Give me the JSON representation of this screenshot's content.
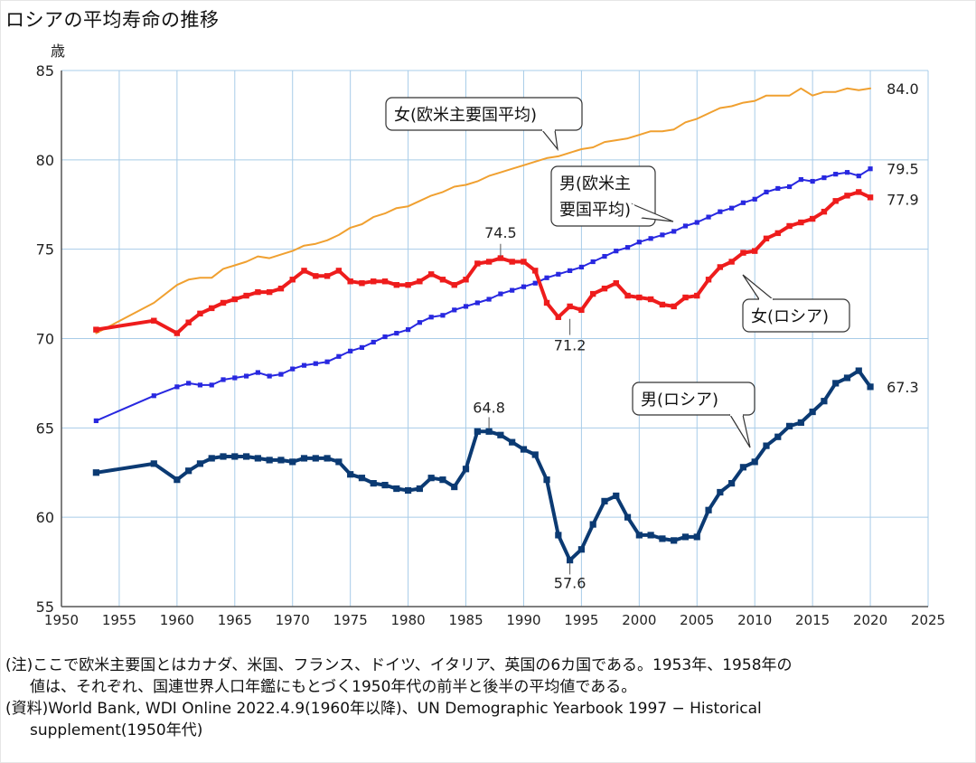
{
  "title": "ロシアの平均寿命の推移",
  "chart_data": {
    "type": "line",
    "ylabel": "歳",
    "xlim": [
      1950,
      2025
    ],
    "ylim": [
      55,
      85
    ],
    "xticks": [
      "1950",
      "1955",
      "1960",
      "1965",
      "1970",
      "1975",
      "1980",
      "1985",
      "1990",
      "1995",
      "2000",
      "2005",
      "2010",
      "2015",
      "2020",
      "2025"
    ],
    "yticks": [
      "55",
      "60",
      "65",
      "70",
      "75",
      "80",
      "85"
    ],
    "grid": true,
    "series": [
      {
        "name": "女(欧米主要国平均)",
        "color": "#f0a030",
        "x": [
          1953,
          1958,
          1960,
          1961,
          1962,
          1963,
          1964,
          1965,
          1966,
          1967,
          1968,
          1969,
          1970,
          1971,
          1972,
          1973,
          1974,
          1975,
          1976,
          1977,
          1978,
          1979,
          1980,
          1981,
          1982,
          1983,
          1984,
          1985,
          1986,
          1987,
          1988,
          1989,
          1990,
          1991,
          1992,
          1993,
          1994,
          1995,
          1996,
          1997,
          1998,
          1999,
          2000,
          2001,
          2002,
          2003,
          2004,
          2005,
          2006,
          2007,
          2008,
          2009,
          2010,
          2011,
          2012,
          2013,
          2014,
          2015,
          2016,
          2017,
          2018,
          2019,
          2020
        ],
        "y": [
          70.3,
          72.0,
          73.0,
          73.3,
          73.4,
          73.4,
          73.9,
          74.1,
          74.3,
          74.6,
          74.5,
          74.7,
          74.9,
          75.2,
          75.3,
          75.5,
          75.8,
          76.2,
          76.4,
          76.8,
          77.0,
          77.3,
          77.4,
          77.7,
          78.0,
          78.2,
          78.5,
          78.6,
          78.8,
          79.1,
          79.3,
          79.5,
          79.7,
          79.9,
          80.1,
          80.2,
          80.4,
          80.6,
          80.7,
          81.0,
          81.1,
          81.2,
          81.4,
          81.6,
          81.6,
          81.7,
          82.1,
          82.3,
          82.6,
          82.9,
          83.0,
          83.2,
          83.3,
          83.6,
          83.6,
          83.6,
          84.0,
          83.6,
          83.8,
          83.8,
          84.0,
          83.9,
          84.0
        ],
        "end_label": "84.0"
      },
      {
        "name": "男(欧米主要国平均)",
        "color": "#2828e0",
        "x": [
          1953,
          1958,
          1960,
          1961,
          1962,
          1963,
          1964,
          1965,
          1966,
          1967,
          1968,
          1969,
          1970,
          1971,
          1972,
          1973,
          1974,
          1975,
          1976,
          1977,
          1978,
          1979,
          1980,
          1981,
          1982,
          1983,
          1984,
          1985,
          1986,
          1987,
          1988,
          1989,
          1990,
          1991,
          1992,
          1993,
          1994,
          1995,
          1996,
          1997,
          1998,
          1999,
          2000,
          2001,
          2002,
          2003,
          2004,
          2005,
          2006,
          2007,
          2008,
          2009,
          2010,
          2011,
          2012,
          2013,
          2014,
          2015,
          2016,
          2017,
          2018,
          2019,
          2020
        ],
        "y": [
          65.4,
          66.8,
          67.3,
          67.5,
          67.4,
          67.4,
          67.7,
          67.8,
          67.9,
          68.1,
          67.9,
          68.0,
          68.3,
          68.5,
          68.6,
          68.7,
          69.0,
          69.3,
          69.5,
          69.8,
          70.1,
          70.3,
          70.5,
          70.9,
          71.2,
          71.3,
          71.6,
          71.8,
          72.0,
          72.2,
          72.5,
          72.7,
          72.9,
          73.1,
          73.4,
          73.6,
          73.8,
          74.0,
          74.3,
          74.6,
          74.9,
          75.1,
          75.4,
          75.6,
          75.8,
          76.0,
          76.3,
          76.5,
          76.8,
          77.1,
          77.3,
          77.6,
          77.8,
          78.2,
          78.4,
          78.5,
          78.9,
          78.8,
          79.0,
          79.2,
          79.3,
          79.1,
          79.5
        ],
        "end_label": "79.5"
      },
      {
        "name": "女(ロシア)",
        "color": "#ee1c1c",
        "x": [
          1953,
          1958,
          1960,
          1961,
          1962,
          1963,
          1964,
          1965,
          1966,
          1967,
          1968,
          1969,
          1970,
          1971,
          1972,
          1973,
          1974,
          1975,
          1976,
          1977,
          1978,
          1979,
          1980,
          1981,
          1982,
          1983,
          1984,
          1985,
          1986,
          1987,
          1988,
          1989,
          1990,
          1991,
          1992,
          1993,
          1994,
          1995,
          1996,
          1997,
          1998,
          1999,
          2000,
          2001,
          2002,
          2003,
          2004,
          2005,
          2006,
          2007,
          2008,
          2009,
          2010,
          2011,
          2012,
          2013,
          2014,
          2015,
          2016,
          2017,
          2018,
          2019,
          2020
        ],
        "y": [
          70.5,
          71.0,
          70.3,
          70.9,
          71.4,
          71.7,
          72.0,
          72.2,
          72.4,
          72.6,
          72.6,
          72.8,
          73.3,
          73.8,
          73.5,
          73.5,
          73.8,
          73.2,
          73.1,
          73.2,
          73.2,
          73.0,
          73.0,
          73.2,
          73.6,
          73.3,
          73.0,
          73.3,
          74.2,
          74.3,
          74.5,
          74.3,
          74.3,
          73.8,
          72.0,
          71.2,
          71.8,
          71.6,
          72.5,
          72.8,
          73.1,
          72.4,
          72.3,
          72.2,
          71.9,
          71.8,
          72.3,
          72.4,
          73.3,
          74.0,
          74.3,
          74.8,
          74.9,
          75.6,
          75.9,
          76.3,
          76.5,
          76.7,
          77.1,
          77.7,
          78.0,
          78.2,
          77.9
        ],
        "point_labels": [
          {
            "x": 1988,
            "y": 74.5,
            "text": "74.5"
          },
          {
            "x": 1994,
            "y": 71.2,
            "text": "71.2"
          }
        ],
        "end_label": "77.9"
      },
      {
        "name": "男(ロシア)",
        "color": "#0b3a73",
        "x": [
          1953,
          1958,
          1960,
          1961,
          1962,
          1963,
          1964,
          1965,
          1966,
          1967,
          1968,
          1969,
          1970,
          1971,
          1972,
          1973,
          1974,
          1975,
          1976,
          1977,
          1978,
          1979,
          1980,
          1981,
          1982,
          1983,
          1984,
          1985,
          1986,
          1987,
          1988,
          1989,
          1990,
          1991,
          1992,
          1993,
          1994,
          1995,
          1996,
          1997,
          1998,
          1999,
          2000,
          2001,
          2002,
          2003,
          2004,
          2005,
          2006,
          2007,
          2008,
          2009,
          2010,
          2011,
          2012,
          2013,
          2014,
          2015,
          2016,
          2017,
          2018,
          2019,
          2020
        ],
        "y": [
          62.5,
          63.0,
          62.1,
          62.6,
          63.0,
          63.3,
          63.4,
          63.4,
          63.4,
          63.3,
          63.2,
          63.2,
          63.1,
          63.3,
          63.3,
          63.3,
          63.1,
          62.4,
          62.2,
          61.9,
          61.8,
          61.6,
          61.5,
          61.6,
          62.2,
          62.1,
          61.7,
          62.7,
          64.8,
          64.8,
          64.6,
          64.2,
          63.8,
          63.5,
          62.1,
          59.0,
          57.6,
          58.2,
          59.6,
          60.9,
          61.2,
          60.0,
          59.0,
          59.0,
          58.8,
          58.7,
          58.9,
          58.9,
          60.4,
          61.4,
          61.9,
          62.8,
          63.1,
          64.0,
          64.5,
          65.1,
          65.3,
          65.9,
          66.5,
          67.5,
          67.8,
          68.2,
          67.3
        ],
        "point_labels": [
          {
            "x": 1987,
            "y": 64.8,
            "text": "64.8"
          },
          {
            "x": 1994,
            "y": 57.6,
            "text": "57.6"
          }
        ],
        "end_label": "67.3"
      }
    ],
    "callouts": [
      {
        "text": "女(欧米主要国平均)",
        "series": 0
      },
      {
        "text": "男(欧米主\n要国平均)",
        "series": 1
      },
      {
        "text": "女(ロシア)",
        "series": 2
      },
      {
        "text": "男(ロシア)",
        "series": 3
      }
    ]
  },
  "notes": {
    "note_line1": "(注)ここで欧米主要国とはカナダ、米国、フランス、ドイツ、イタリア、英国の6カ国である。1953年、1958年の",
    "note_line2": "値は、それぞれ、国連世界人口年鑑にもとづく1950年代の前半と後半の平均値である。",
    "source_line1": "(資料)World Bank, WDI Online 2022.4.9(1960年以降)、UN Demographic Yearbook 1997 − Historical",
    "source_line2": "supplement(1950年代)"
  }
}
